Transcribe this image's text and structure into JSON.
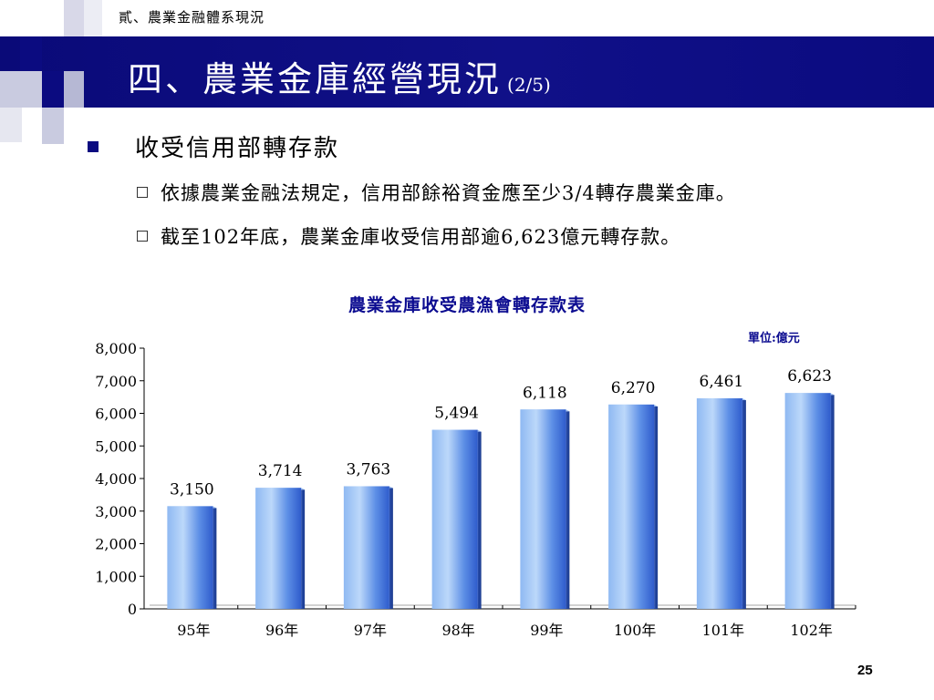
{
  "breadcrumb": "貳、農業金融體系現況",
  "title": {
    "main": "四、農業金庫經營現況",
    "page_of": "(2/5)"
  },
  "bullets": {
    "main": "收受信用部轉存款",
    "sub": [
      "依據農業金融法規定，信用部餘裕資金應至少3/4轉存農業金庫。",
      "截至102年底，農業金庫收受信用部逾6,623億元轉存款。"
    ]
  },
  "page_number": "25",
  "colors": {
    "title_bar": "#0b0b80",
    "chart_title": "#0b0b90",
    "bar_light": "#a9cdf6",
    "bar_dark": "#2f63d8"
  },
  "chart_data": {
    "type": "bar",
    "title": "農業金庫收受農漁會轉存款表",
    "unit": "單位:億元",
    "categories": [
      "95年",
      "96年",
      "97年",
      "98年",
      "99年",
      "100年",
      "101年",
      "102年"
    ],
    "values": [
      3150,
      3714,
      3763,
      5494,
      6118,
      6270,
      6461,
      6623
    ],
    "value_labels": [
      "3,150",
      "3,714",
      "3,763",
      "5,494",
      "6,118",
      "6,270",
      "6,461",
      "6,623"
    ],
    "ylim": [
      0,
      8000
    ],
    "yticks": [
      0,
      1000,
      2000,
      3000,
      4000,
      5000,
      6000,
      7000,
      8000
    ],
    "ytick_labels": [
      "0",
      "1,000",
      "2,000",
      "3,000",
      "4,000",
      "5,000",
      "6,000",
      "7,000",
      "8,000"
    ],
    "grid": false,
    "legend": "none"
  }
}
